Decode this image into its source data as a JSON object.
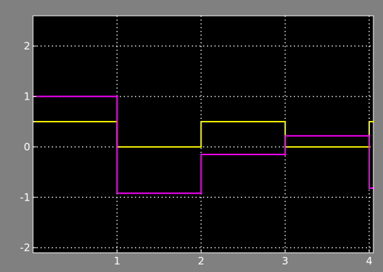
{
  "chart_data": {
    "type": "line",
    "step": true,
    "title": "",
    "xlabel": "",
    "ylabel": "",
    "xlim": [
      0,
      4.05
    ],
    "ylim": [
      -2.1,
      2.6
    ],
    "x_ticks": [
      {
        "value": 1,
        "label": "1"
      },
      {
        "value": 2,
        "label": "2"
      },
      {
        "value": 3,
        "label": "3"
      },
      {
        "value": 4,
        "label": "4"
      }
    ],
    "y_ticks": [
      {
        "value": 2,
        "label": "2"
      },
      {
        "value": 1,
        "label": "1"
      },
      {
        "value": 0,
        "label": "0"
      },
      {
        "value": -1,
        "label": "-1"
      },
      {
        "value": -2,
        "label": "-2"
      }
    ],
    "grid": true,
    "legend": "none",
    "background_color": "#000000",
    "frame_color": "#808080",
    "grid_color": "#ffffff",
    "series": [
      {
        "color": "#ffff00",
        "points": [
          [
            0,
            0.5
          ],
          [
            1,
            0.5
          ],
          [
            1,
            0
          ],
          [
            2,
            0
          ],
          [
            2,
            0.5
          ],
          [
            3,
            0.5
          ],
          [
            3,
            0
          ],
          [
            4,
            0
          ],
          [
            4,
            0.5
          ],
          [
            4.05,
            0.5
          ]
        ]
      },
      {
        "color": "#ff00ff",
        "points": [
          [
            0,
            1
          ],
          [
            1,
            1
          ],
          [
            1,
            -0.92
          ],
          [
            2,
            -0.92
          ],
          [
            2,
            -0.15
          ],
          [
            3,
            -0.15
          ],
          [
            3,
            0.22
          ],
          [
            4,
            0.22
          ],
          [
            4,
            -0.82
          ],
          [
            4.05,
            -0.82
          ]
        ]
      }
    ]
  }
}
